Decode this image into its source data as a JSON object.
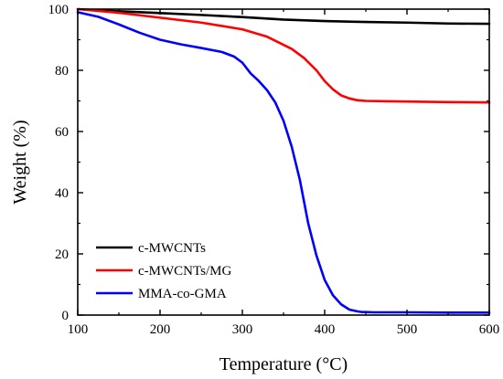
{
  "chart_data": {
    "type": "line",
    "title": "",
    "xlabel": "Temperature (°C)",
    "ylabel": "Weight (%)",
    "xlim": [
      100,
      600
    ],
    "ylim": [
      0,
      100
    ],
    "xticks": [
      "100",
      "200",
      "300",
      "400",
      "500",
      "600"
    ],
    "yticks": [
      "0",
      "20",
      "40",
      "60",
      "80",
      "100"
    ],
    "grid": false,
    "legend_position": "bottom-left",
    "series": [
      {
        "name": "c-MWCNTs",
        "color": "#000000",
        "x": [
          100,
          150,
          200,
          250,
          300,
          350,
          400,
          450,
          500,
          550,
          600
        ],
        "y": [
          100,
          99.3,
          98.7,
          98.1,
          97.4,
          96.6,
          96.1,
          95.8,
          95.6,
          95.3,
          95.2
        ]
      },
      {
        "name": "c-MWCNTs/MG",
        "color": "#ff0000",
        "x": [
          100,
          150,
          200,
          250,
          300,
          330,
          360,
          375,
          390,
          400,
          410,
          420,
          430,
          440,
          450,
          470,
          500,
          550,
          600
        ],
        "y": [
          100,
          98.8,
          97.2,
          95.6,
          93.4,
          91.0,
          87.0,
          84.0,
          80.0,
          76.5,
          73.8,
          71.8,
          70.8,
          70.2,
          70.0,
          69.9,
          69.8,
          69.6,
          69.5
        ]
      },
      {
        "name": "MMA-co-GMA",
        "color": "#0000ff",
        "x": [
          100,
          125,
          150,
          175,
          200,
          225,
          250,
          275,
          290,
          300,
          310,
          320,
          330,
          340,
          350,
          360,
          370,
          380,
          390,
          400,
          410,
          420,
          430,
          440,
          445,
          450,
          460,
          500,
          550,
          600
        ],
        "y": [
          99.0,
          97.5,
          95.0,
          92.3,
          90.0,
          88.5,
          87.3,
          86.0,
          84.5,
          82.5,
          79.0,
          76.5,
          73.5,
          69.5,
          63.5,
          55.0,
          44.0,
          30.0,
          19.5,
          11.5,
          6.5,
          3.5,
          1.8,
          1.2,
          1.0,
          1.0,
          0.9,
          0.9,
          0.8,
          0.8
        ]
      }
    ]
  }
}
